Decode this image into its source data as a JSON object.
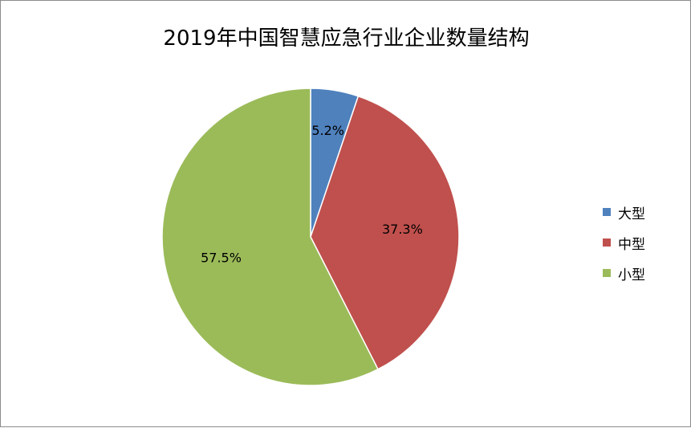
{
  "chart_data": {
    "type": "pie",
    "title": "2019年中国智慧应急行业企业数量结构",
    "categories": [
      "大型",
      "中型",
      "小型"
    ],
    "values": [
      5.2,
      37.3,
      57.5
    ],
    "labels": [
      "5.2%",
      "37.3%",
      "57.5%"
    ],
    "colors": [
      "#4f81bd",
      "#c0504d",
      "#9bbb59"
    ],
    "start_angle": "12 o'clock",
    "direction": "clockwise",
    "legend_position": "right"
  }
}
